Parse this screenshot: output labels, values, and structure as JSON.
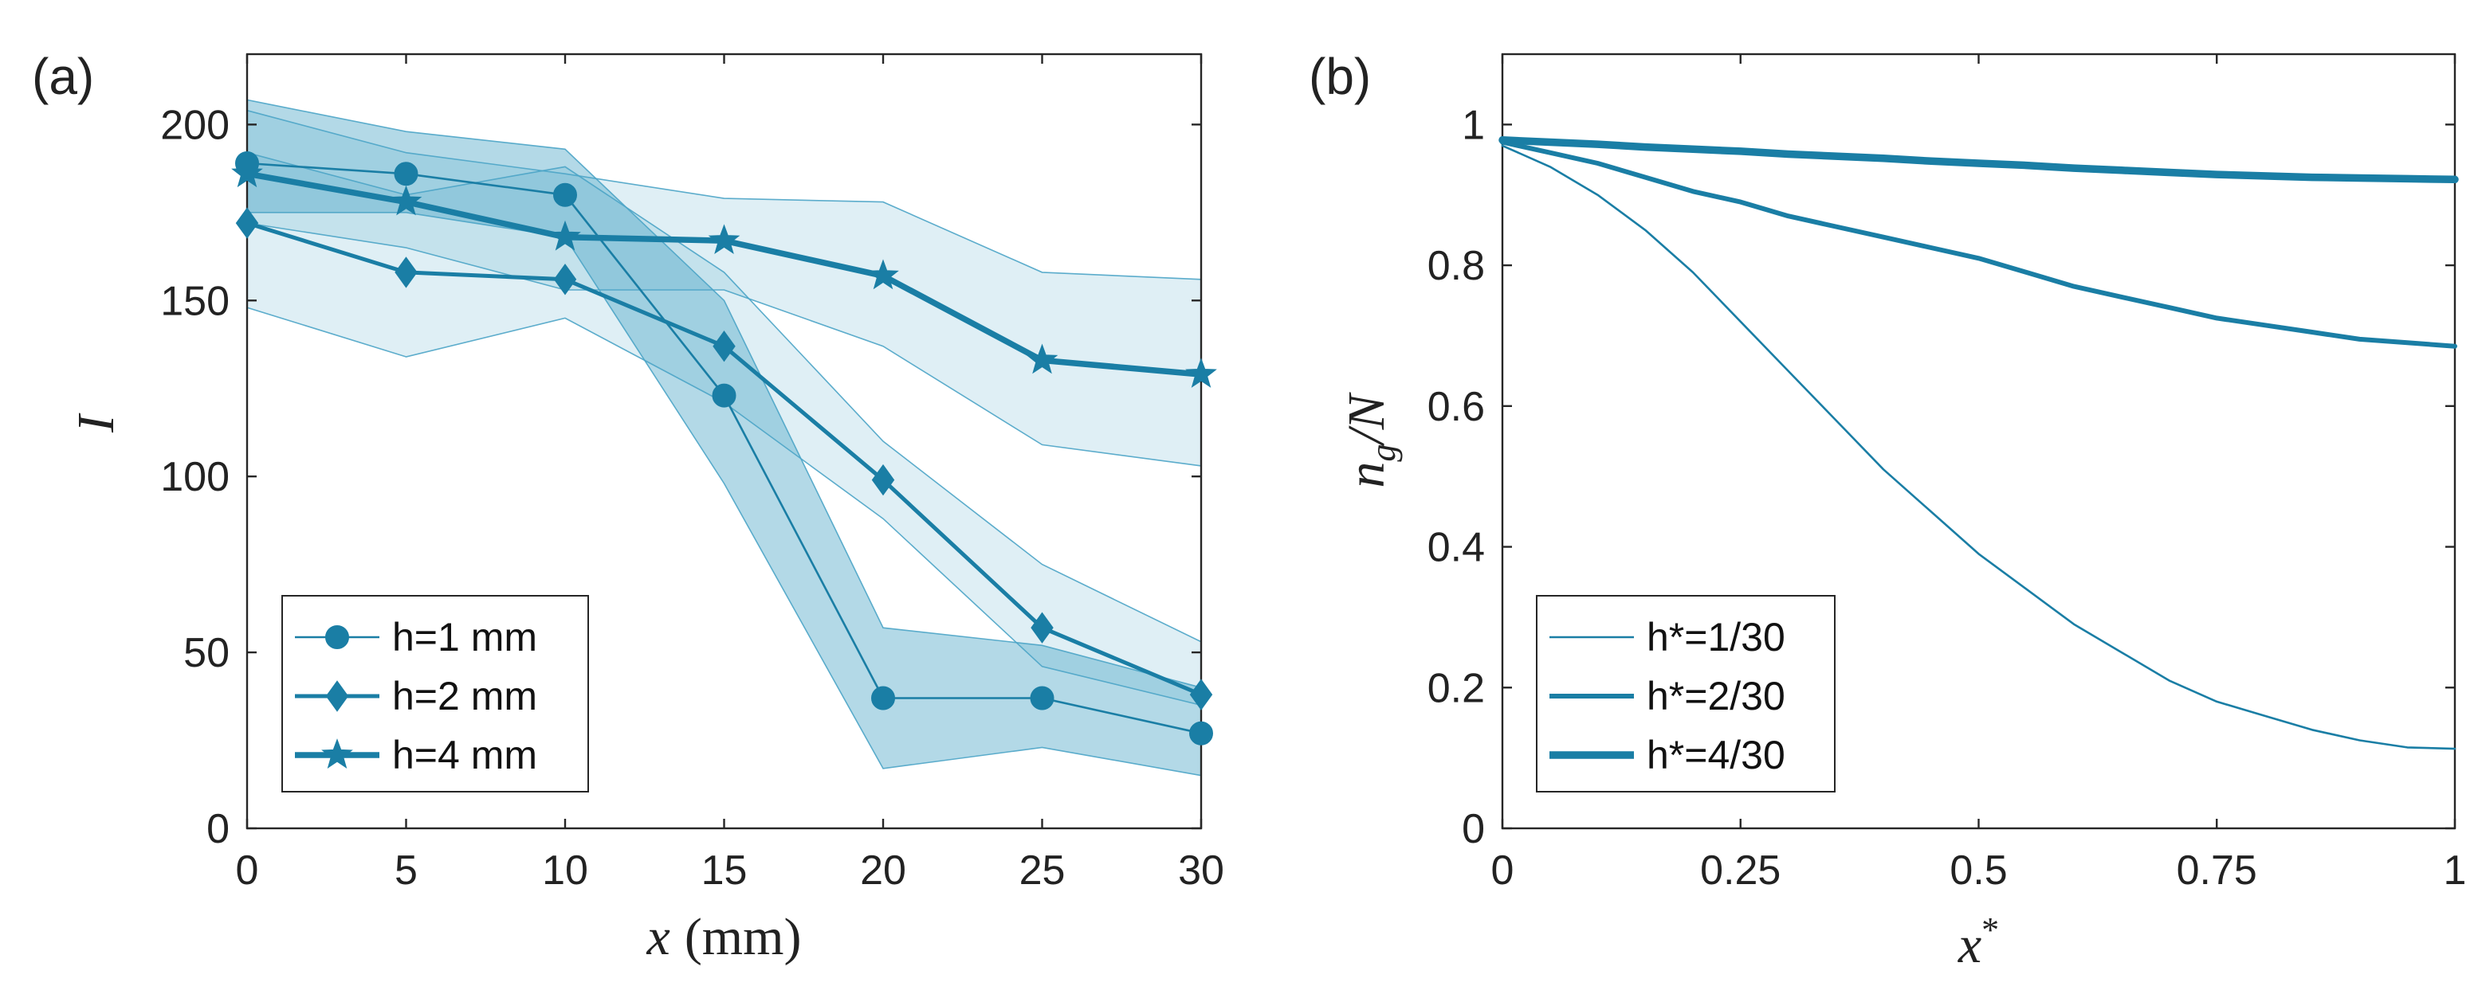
{
  "chart_data": [
    {
      "panel_label": "(a)",
      "type": "line",
      "xlabel_var": "x",
      "xlabel_unit": "(mm)",
      "ylabel": "I",
      "xlim": [
        0,
        30
      ],
      "ylim": [
        0,
        220
      ],
      "x_ticks": [
        0,
        5,
        10,
        15,
        20,
        25,
        30
      ],
      "y_ticks": [
        0,
        50,
        100,
        150,
        200
      ],
      "legend_position": "bottom-left",
      "color": "#1a7ea5",
      "band_color": "#4ba4c6",
      "x": [
        0,
        5,
        10,
        15,
        20,
        25,
        30
      ],
      "series": [
        {
          "name": "h=1 mm",
          "marker": "circle",
          "values": [
            189,
            186,
            180,
            123,
            37,
            37,
            27
          ],
          "band_upper": [
            207,
            198,
            193,
            150,
            57,
            52,
            40
          ],
          "band_lower": [
            175,
            175,
            168,
            98,
            17,
            23,
            15
          ],
          "band_opacity": 0.42
        },
        {
          "name": "h=2 mm",
          "marker": "diamond",
          "values": [
            172,
            158,
            156,
            137,
            99,
            57,
            38
          ],
          "band_upper": [
            192,
            180,
            188,
            158,
            110,
            75,
            53
          ],
          "band_lower": [
            148,
            134,
            145,
            121,
            88,
            46,
            35
          ],
          "band_opacity": 0.18
        },
        {
          "name": "h=4 mm",
          "marker": "star",
          "values": [
            186,
            178,
            168,
            167,
            157,
            133,
            129
          ],
          "band_upper": [
            204,
            192,
            186,
            179,
            178,
            158,
            156
          ],
          "band_lower": [
            172,
            165,
            153,
            153,
            137,
            109,
            103
          ],
          "band_opacity": 0.18
        }
      ]
    },
    {
      "panel_label": "(b)",
      "type": "line",
      "xlabel": "x*",
      "ylabel": "n_g/N",
      "xlim": [
        0,
        1
      ],
      "ylim": [
        0,
        1.1
      ],
      "x_ticks": [
        "0",
        "0.25",
        "0.5",
        "0.75",
        "1"
      ],
      "y_ticks": [
        "0",
        "0.2",
        "0.4",
        "0.6",
        "0.8",
        "1"
      ],
      "legend_position": "bottom-left",
      "color": "#1a7ea5",
      "x": [
        0,
        0.05,
        0.1,
        0.15,
        0.2,
        0.25,
        0.3,
        0.35,
        0.4,
        0.45,
        0.5,
        0.55,
        0.6,
        0.65,
        0.7,
        0.75,
        0.8,
        0.85,
        0.9,
        0.95,
        1
      ],
      "series": [
        {
          "name": "h*=1/30",
          "values": [
            0.97,
            0.94,
            0.9,
            0.85,
            0.79,
            0.72,
            0.65,
            0.58,
            0.51,
            0.45,
            0.39,
            0.34,
            0.29,
            0.25,
            0.21,
            0.18,
            0.16,
            0.14,
            0.125,
            0.115,
            0.113
          ]
        },
        {
          "name": "h*=2/30",
          "values": [
            0.975,
            0.96,
            0.945,
            0.925,
            0.905,
            0.89,
            0.87,
            0.855,
            0.84,
            0.825,
            0.81,
            0.79,
            0.77,
            0.755,
            0.74,
            0.725,
            0.715,
            0.705,
            0.695,
            0.69,
            0.685
          ]
        },
        {
          "name": "h*=4/30",
          "values": [
            0.978,
            0.975,
            0.972,
            0.968,
            0.965,
            0.962,
            0.958,
            0.955,
            0.952,
            0.948,
            0.945,
            0.942,
            0.938,
            0.935,
            0.932,
            0.929,
            0.927,
            0.925,
            0.924,
            0.923,
            0.922
          ]
        }
      ]
    }
  ]
}
